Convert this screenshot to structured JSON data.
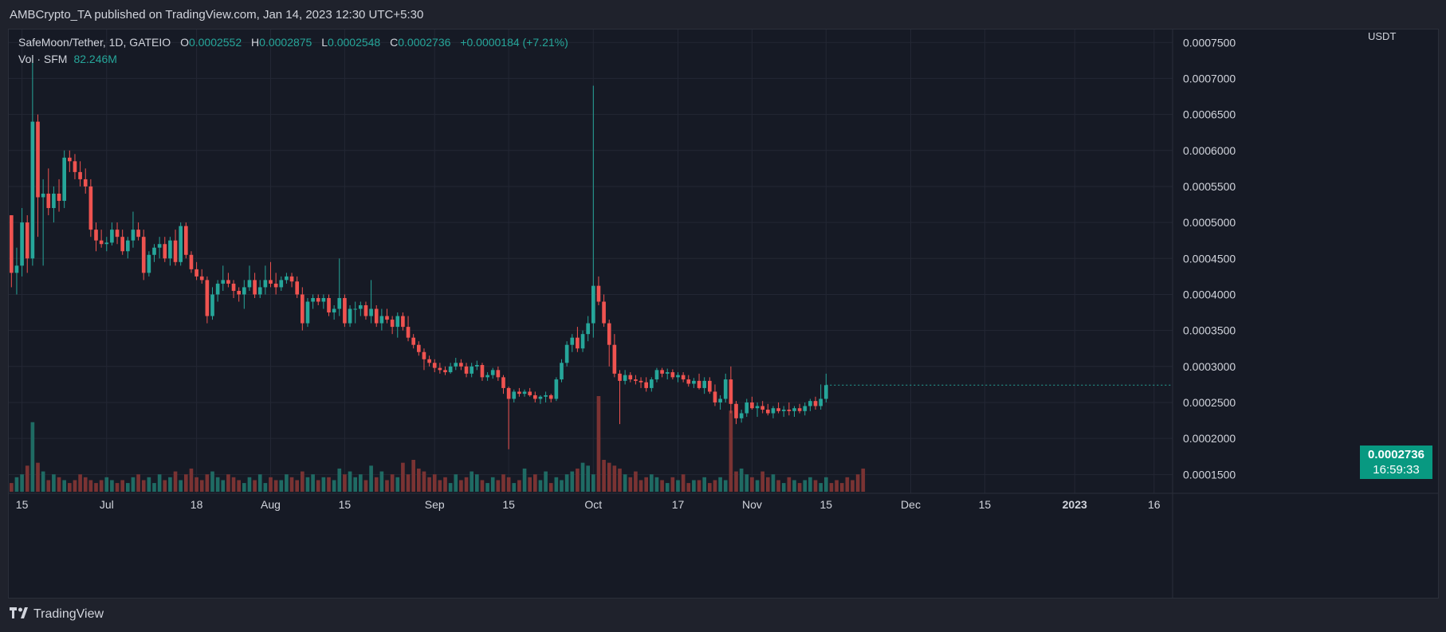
{
  "publisher_line": "AMBCrypto_TA published on TradingView.com, Jan 14, 2023 12:30 UTC+5:30",
  "legend": {
    "symbol": "SafeMoon/Tether, 1D, GATEIO",
    "open_label": "O",
    "open": "0.0002552",
    "high_label": "H",
    "high": "0.0002875",
    "low_label": "L",
    "low": "0.0002548",
    "close_label": "C",
    "close": "0.0002736",
    "change": "+0.0000184 (+7.21%)"
  },
  "volume_legend": {
    "label": "Vol · SFM",
    "value": "82.246M"
  },
  "price_tag": {
    "price": "0.0002736",
    "countdown": "16:59:33"
  },
  "footer": {
    "brand": "TradingView"
  },
  "colors": {
    "up": "#26a69a",
    "down": "#ef5350",
    "up_volume": "#1f6b64",
    "down_volume": "#7a3333",
    "background": "#161a25",
    "grid": "#232734"
  },
  "chart_data": {
    "type": "candlestick",
    "title": "SafeMoon/Tether, 1D, GATEIO",
    "y_unit": "USDT",
    "y_ticks": [
      "0.0001500",
      "0.0002000",
      "0.0002500",
      "0.0003000",
      "0.0003500",
      "0.0004000",
      "0.0004500",
      "0.0005000",
      "0.0005500",
      "0.0006000",
      "0.0006500",
      "0.0007000",
      "0.0007500"
    ],
    "ylim": [
      0.000126,
      0.000768
    ],
    "x_ticks": [
      {
        "label": "15",
        "index": 2
      },
      {
        "label": "Jul",
        "index": 18
      },
      {
        "label": "18",
        "index": 35
      },
      {
        "label": "Aug",
        "index": 49
      },
      {
        "label": "15",
        "index": 63
      },
      {
        "label": "Sep",
        "index": 80
      },
      {
        "label": "15",
        "index": 94
      },
      {
        "label": "Oct",
        "index": 110
      },
      {
        "label": "17",
        "index": 126
      },
      {
        "label": "Nov",
        "index": 140
      },
      {
        "label": "15",
        "index": 154
      },
      {
        "label": "Dec",
        "index": 170
      },
      {
        "label": "15",
        "index": 184
      },
      {
        "label": "2023",
        "index": 201
      },
      {
        "label": "16",
        "index": 216
      }
    ],
    "grid": true,
    "candles": [
      [
        0.00051,
        0.00051,
        0.00041,
        0.00043
      ],
      [
        0.00043,
        0.000465,
        0.0004,
        0.00044
      ],
      [
        0.00044,
        0.00052,
        0.000425,
        0.0005
      ],
      [
        0.0005,
        0.00051,
        0.00043,
        0.00045
      ],
      [
        0.00045,
        0.00073,
        0.00044,
        0.00064
      ],
      [
        0.00064,
        0.00065,
        0.00048,
        0.000535
      ],
      [
        0.000535,
        0.00056,
        0.00044,
        0.00054
      ],
      [
        0.00054,
        0.000575,
        0.00051,
        0.00052
      ],
      [
        0.00052,
        0.00055,
        0.0005,
        0.00054
      ],
      [
        0.00054,
        0.00056,
        0.000515,
        0.00053
      ],
      [
        0.00053,
        0.0006,
        0.00052,
        0.00059
      ],
      [
        0.00059,
        0.0006,
        0.00057,
        0.000585
      ],
      [
        0.000585,
        0.000595,
        0.00056,
        0.00057
      ],
      [
        0.00057,
        0.000585,
        0.00055,
        0.00056
      ],
      [
        0.00056,
        0.000575,
        0.00054,
        0.00055
      ],
      [
        0.00055,
        0.00056,
        0.00048,
        0.00049
      ],
      [
        0.00049,
        0.0005,
        0.00046,
        0.000475
      ],
      [
        0.000475,
        0.00049,
        0.000465,
        0.00047
      ],
      [
        0.00047,
        0.00048,
        0.00046,
        0.000472
      ],
      [
        0.000472,
        0.0005,
        0.000468,
        0.00049
      ],
      [
        0.00049,
        0.0005,
        0.00047,
        0.00048
      ],
      [
        0.00048,
        0.00049,
        0.000455,
        0.00046
      ],
      [
        0.00046,
        0.00048,
        0.00045,
        0.000475
      ],
      [
        0.000475,
        0.000515,
        0.000465,
        0.00049
      ],
      [
        0.00049,
        0.0005,
        0.000475,
        0.00048
      ],
      [
        0.00048,
        0.00049,
        0.00042,
        0.00043
      ],
      [
        0.00043,
        0.00046,
        0.000425,
        0.000455
      ],
      [
        0.000455,
        0.00047,
        0.000445,
        0.000465
      ],
      [
        0.000465,
        0.00048,
        0.00045,
        0.00047
      ],
      [
        0.00047,
        0.00048,
        0.000445,
        0.00045
      ],
      [
        0.00045,
        0.00048,
        0.00044,
        0.000475
      ],
      [
        0.000475,
        0.00049,
        0.00044,
        0.000445
      ],
      [
        0.000445,
        0.0005,
        0.00044,
        0.000495
      ],
      [
        0.000495,
        0.0005,
        0.00045,
        0.000455
      ],
      [
        0.000455,
        0.00046,
        0.00043,
        0.000435
      ],
      [
        0.000435,
        0.000445,
        0.00042,
        0.000425
      ],
      [
        0.000425,
        0.000435,
        0.000415,
        0.00042
      ],
      [
        0.00042,
        0.000425,
        0.00036,
        0.00037
      ],
      [
        0.00037,
        0.00041,
        0.000365,
        0.0004
      ],
      [
        0.0004,
        0.00042,
        0.00039,
        0.000415
      ],
      [
        0.000415,
        0.00044,
        0.000405,
        0.00042
      ],
      [
        0.00042,
        0.00043,
        0.00041,
        0.000415
      ],
      [
        0.000415,
        0.00042,
        0.000395,
        0.000405
      ],
      [
        0.000405,
        0.00041,
        0.00039,
        0.0004
      ],
      [
        0.0004,
        0.00042,
        0.00038,
        0.00041
      ],
      [
        0.00041,
        0.00044,
        0.000405,
        0.00042
      ],
      [
        0.00042,
        0.00043,
        0.000395,
        0.0004
      ],
      [
        0.0004,
        0.00042,
        0.000395,
        0.00041
      ],
      [
        0.00041,
        0.00044,
        0.0004,
        0.00042
      ],
      [
        0.00042,
        0.000445,
        0.00041,
        0.000415
      ],
      [
        0.000415,
        0.00043,
        0.0004,
        0.00041
      ],
      [
        0.00041,
        0.000425,
        0.000405,
        0.00042
      ],
      [
        0.00042,
        0.00043,
        0.000415,
        0.000425
      ],
      [
        0.000425,
        0.00043,
        0.00041,
        0.000418
      ],
      [
        0.000418,
        0.000425,
        0.000395,
        0.0004
      ],
      [
        0.0004,
        0.00041,
        0.00035,
        0.00036
      ],
      [
        0.00036,
        0.000395,
        0.000355,
        0.00039
      ],
      [
        0.00039,
        0.0004,
        0.00038,
        0.000395
      ],
      [
        0.000395,
        0.0004,
        0.000385,
        0.00039
      ],
      [
        0.00039,
        0.0004,
        0.00038,
        0.000395
      ],
      [
        0.000395,
        0.0004,
        0.00037,
        0.000375
      ],
      [
        0.000375,
        0.000385,
        0.000365,
        0.00038
      ],
      [
        0.00038,
        0.00045,
        0.00037,
        0.000395
      ],
      [
        0.000395,
        0.0004,
        0.000355,
        0.00036
      ],
      [
        0.00036,
        0.000385,
        0.000355,
        0.00038
      ],
      [
        0.00038,
        0.00039,
        0.00036,
        0.00038
      ],
      [
        0.00038,
        0.00039,
        0.00037,
        0.000385
      ],
      [
        0.000385,
        0.00039,
        0.000365,
        0.00037
      ],
      [
        0.00037,
        0.00042,
        0.00036,
        0.00038
      ],
      [
        0.00038,
        0.000385,
        0.000355,
        0.00036
      ],
      [
        0.00036,
        0.00038,
        0.00035,
        0.00037
      ],
      [
        0.00037,
        0.00038,
        0.00036,
        0.000365
      ],
      [
        0.000365,
        0.00037,
        0.000345,
        0.000355
      ],
      [
        0.000355,
        0.000375,
        0.00034,
        0.00037
      ],
      [
        0.00037,
        0.000375,
        0.00035,
        0.000355
      ],
      [
        0.000355,
        0.00037,
        0.000335,
        0.00034
      ],
      [
        0.00034,
        0.000345,
        0.000325,
        0.00033
      ],
      [
        0.00033,
        0.000335,
        0.000315,
        0.00032
      ],
      [
        0.00032,
        0.000325,
        0.000295,
        0.00031
      ],
      [
        0.00031,
        0.000315,
        0.0003,
        0.000305
      ],
      [
        0.000305,
        0.00031,
        0.000292,
        0.000298
      ],
      [
        0.000298,
        0.000305,
        0.00029,
        0.000295
      ],
      [
        0.000295,
        0.0003,
        0.000288,
        0.000292
      ],
      [
        0.000292,
        0.000305,
        0.00029,
        0.0003
      ],
      [
        0.0003,
        0.000312,
        0.000295,
        0.000305
      ],
      [
        0.000305,
        0.00031,
        0.000295,
        0.0003
      ],
      [
        0.0003,
        0.000305,
        0.000285,
        0.00029
      ],
      [
        0.00029,
        0.000305,
        0.000285,
        0.0003
      ],
      [
        0.0003,
        0.000308,
        0.000295,
        0.000302
      ],
      [
        0.000302,
        0.000305,
        0.00028,
        0.000285
      ],
      [
        0.000285,
        0.000292,
        0.00028,
        0.000288
      ],
      [
        0.000288,
        0.000298,
        0.000283,
        0.000295
      ],
      [
        0.000295,
        0.0003,
        0.00028,
        0.000285
      ],
      [
        0.000285,
        0.000288,
        0.000262,
        0.00027
      ],
      [
        0.00027,
        0.000272,
        0.000185,
        0.000255
      ],
      [
        0.000255,
        0.000268,
        0.00025,
        0.000265
      ],
      [
        0.000265,
        0.00027,
        0.000258,
        0.000262
      ],
      [
        0.000262,
        0.000268,
        0.000258,
        0.000265
      ],
      [
        0.000265,
        0.00027,
        0.000258,
        0.00026
      ],
      [
        0.00026,
        0.000265,
        0.00025,
        0.000255
      ],
      [
        0.000255,
        0.00026,
        0.000248,
        0.000258
      ],
      [
        0.000258,
        0.000265,
        0.00025,
        0.00026
      ],
      [
        0.00026,
        0.000262,
        0.00025,
        0.000255
      ],
      [
        0.000255,
        0.000285,
        0.000252,
        0.000282
      ],
      [
        0.000282,
        0.00031,
        0.000278,
        0.000305
      ],
      [
        0.000305,
        0.000335,
        0.0003,
        0.00033
      ],
      [
        0.00033,
        0.000345,
        0.00032,
        0.00034
      ],
      [
        0.00034,
        0.000355,
        0.00032,
        0.000325
      ],
      [
        0.000325,
        0.00035,
        0.00032,
        0.000345
      ],
      [
        0.000345,
        0.00037,
        0.000335,
        0.00036
      ],
      [
        0.00036,
        0.00069,
        0.00034,
        0.000412
      ],
      [
        0.000412,
        0.000425,
        0.000385,
        0.00039
      ],
      [
        0.00039,
        0.0004,
        0.000355,
        0.00036
      ],
      [
        0.00036,
        0.000365,
        0.0003,
        0.00033
      ],
      [
        0.00033,
        0.000345,
        0.000285,
        0.00029
      ],
      [
        0.00029,
        0.000295,
        0.00022,
        0.00028
      ],
      [
        0.00028,
        0.000295,
        0.000275,
        0.000288
      ],
      [
        0.000288,
        0.000292,
        0.000278,
        0.000282
      ],
      [
        0.000282,
        0.000288,
        0.000275,
        0.00028
      ],
      [
        0.00028,
        0.000285,
        0.00027,
        0.000278
      ],
      [
        0.000278,
        0.000285,
        0.000265,
        0.00027
      ],
      [
        0.00027,
        0.000285,
        0.000265,
        0.000282
      ],
      [
        0.000282,
        0.000298,
        0.000278,
        0.000295
      ],
      [
        0.000295,
        0.000298,
        0.000285,
        0.00029
      ],
      [
        0.00029,
        0.000297,
        0.000282,
        0.000292
      ],
      [
        0.000292,
        0.000296,
        0.000282,
        0.000285
      ],
      [
        0.000285,
        0.000292,
        0.000278,
        0.000288
      ],
      [
        0.000288,
        0.000292,
        0.000278,
        0.000282
      ],
      [
        0.000282,
        0.000288,
        0.000272,
        0.000276
      ],
      [
        0.000276,
        0.000284,
        0.00027,
        0.00028
      ],
      [
        0.00028,
        0.00029,
        0.000268,
        0.00027
      ],
      [
        0.00027,
        0.000285,
        0.000262,
        0.00028
      ],
      [
        0.00028,
        0.000285,
        0.000262,
        0.000265
      ],
      [
        0.000265,
        0.000275,
        0.000245,
        0.00025
      ],
      [
        0.00025,
        0.00026,
        0.00024,
        0.000255
      ],
      [
        0.000255,
        0.00029,
        0.00025,
        0.000282
      ],
      [
        0.000282,
        0.0003,
        0.000235,
        0.000248
      ],
      [
        0.000248,
        0.000252,
        0.00022,
        0.000228
      ],
      [
        0.000228,
        0.00024,
        0.000222,
        0.000235
      ],
      [
        0.000235,
        0.000255,
        0.00023,
        0.00025
      ],
      [
        0.00025,
        0.000258,
        0.00024,
        0.000242
      ],
      [
        0.000242,
        0.00025,
        0.00023,
        0.000245
      ],
      [
        0.000245,
        0.000252,
        0.000235,
        0.00024
      ],
      [
        0.00024,
        0.000248,
        0.000232,
        0.000235
      ],
      [
        0.000235,
        0.000245,
        0.000228,
        0.000242
      ],
      [
        0.000242,
        0.00025,
        0.000235,
        0.000238
      ],
      [
        0.000238,
        0.000245,
        0.00023,
        0.00024
      ],
      [
        0.00024,
        0.00025,
        0.000232,
        0.000238
      ],
      [
        0.000238,
        0.000245,
        0.00023,
        0.000242
      ],
      [
        0.000242,
        0.000248,
        0.000235,
        0.000238
      ],
      [
        0.000238,
        0.00025,
        0.000232,
        0.000245
      ],
      [
        0.000245,
        0.000255,
        0.000238,
        0.000252
      ],
      [
        0.000252,
        0.000258,
        0.00024,
        0.000245
      ],
      [
        0.000245,
        0.000275,
        0.00024,
        0.000255
      ],
      [
        0.000255,
        0.00029,
        0.00025,
        0.000274
      ]
    ],
    "volumes": [
      3,
      5,
      6,
      9,
      24,
      10,
      7,
      4,
      6,
      5,
      4,
      3,
      4,
      6,
      5,
      4,
      3,
      4,
      5,
      4,
      3,
      4,
      3,
      5,
      6,
      4,
      5,
      3,
      6,
      4,
      5,
      7,
      4,
      6,
      8,
      5,
      4,
      6,
      7,
      5,
      4,
      6,
      5,
      4,
      3,
      5,
      4,
      6,
      3,
      5,
      4,
      4,
      6,
      5,
      4,
      7,
      5,
      6,
      4,
      5,
      5,
      4,
      8,
      6,
      7,
      5,
      6,
      4,
      9,
      5,
      7,
      4,
      6,
      5,
      10,
      6,
      11,
      8,
      7,
      5,
      6,
      4,
      5,
      3,
      6,
      4,
      5,
      7,
      6,
      4,
      3,
      5,
      4,
      6,
      5,
      3,
      4,
      8,
      5,
      6,
      4,
      7,
      3,
      5,
      4,
      6,
      7,
      8,
      10,
      9,
      6,
      33,
      11,
      10,
      9,
      8,
      6,
      5,
      7,
      4,
      5,
      6,
      5,
      4,
      3,
      5,
      4,
      6,
      3,
      4,
      4,
      5,
      3,
      4,
      5,
      4,
      28,
      7,
      8,
      6,
      5,
      4,
      7,
      5,
      6,
      4,
      3,
      5,
      4,
      3,
      4,
      5,
      4,
      3,
      5,
      3,
      4,
      3,
      5,
      4,
      6,
      8
    ]
  }
}
